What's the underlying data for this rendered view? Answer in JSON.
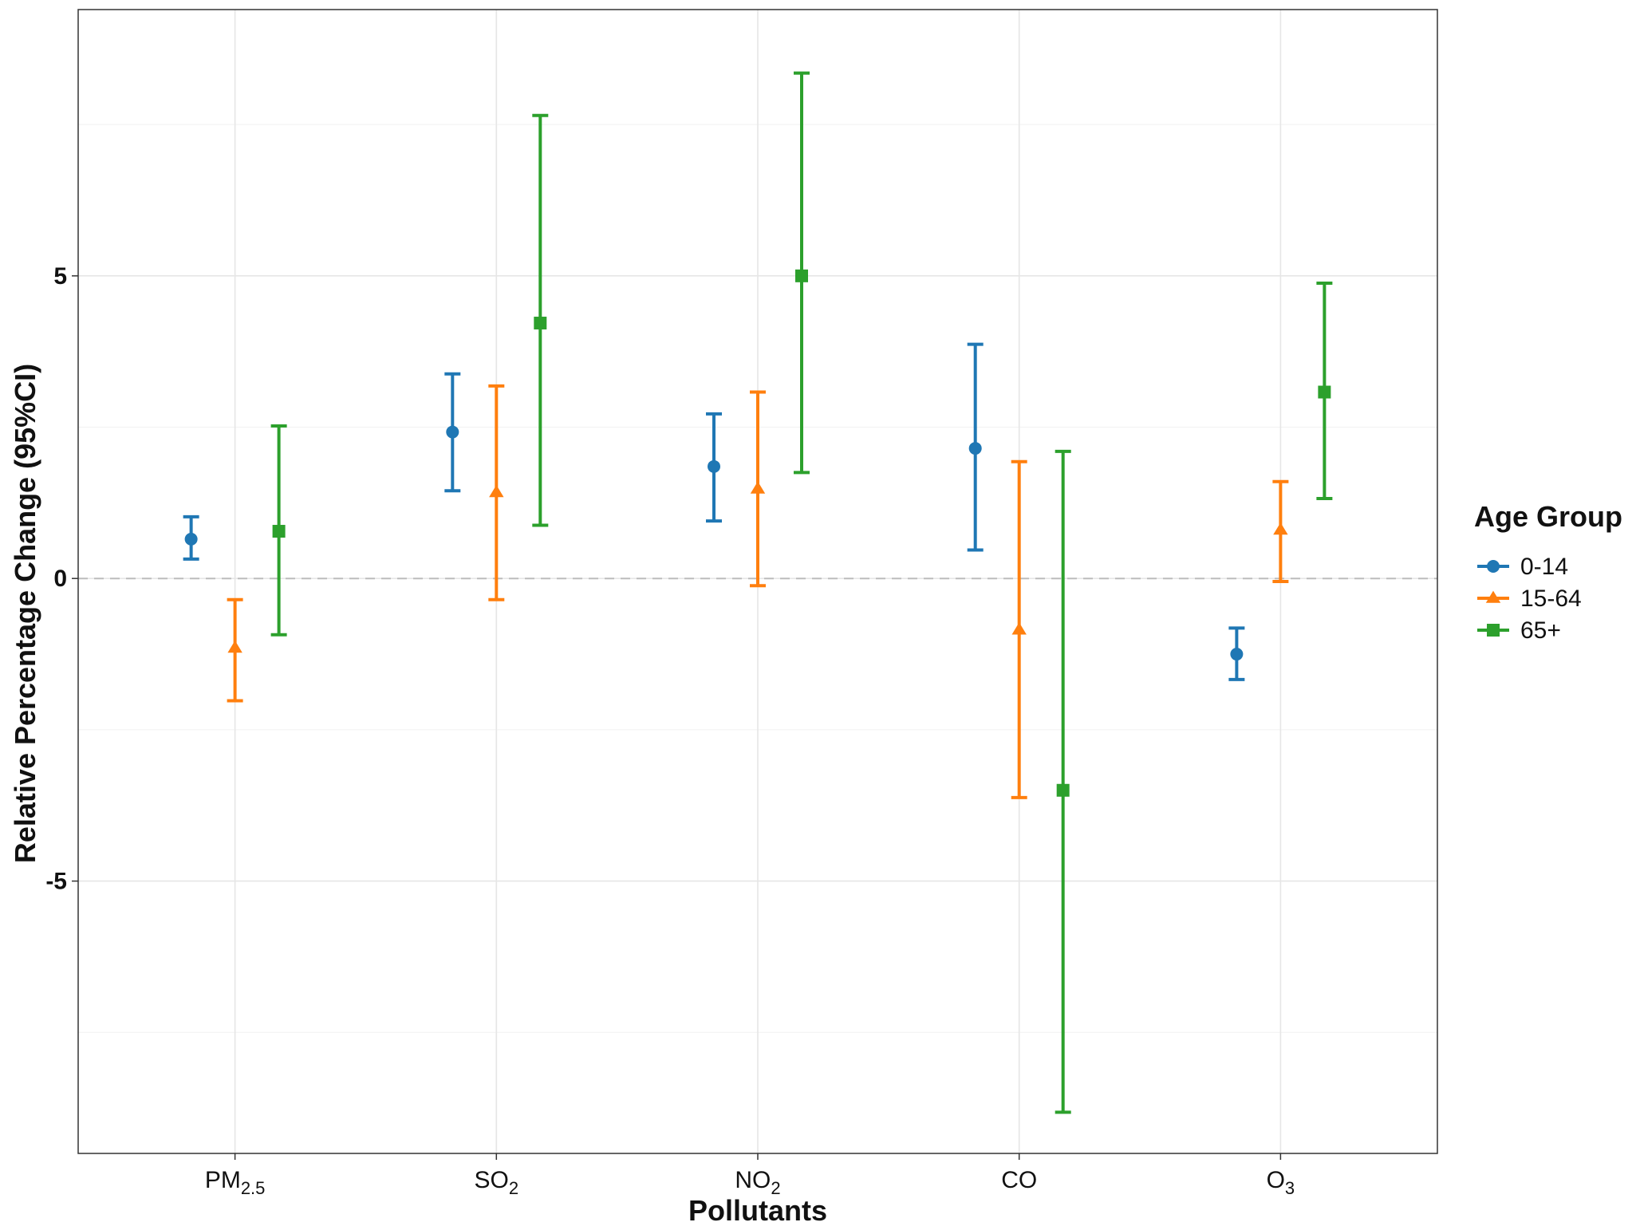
{
  "chart_data": {
    "type": "errorbar",
    "title": "",
    "xlabel": "Pollutants",
    "ylabel": "Relative Percentage Change (95%CI)",
    "categories": [
      {
        "base": "PM",
        "sub": "2.5"
      },
      {
        "base": "SO",
        "sub": "2"
      },
      {
        "base": "NO",
        "sub": "2"
      },
      {
        "base": "CO",
        "sub": ""
      },
      {
        "base": "O",
        "sub": "3"
      }
    ],
    "ylim": [
      -9.5,
      9.4
    ],
    "yticks": [
      {
        "value": -5,
        "label": "-5"
      },
      {
        "value": 0,
        "label": "0"
      },
      {
        "value": 5,
        "label": "5"
      }
    ],
    "reference_line": 0,
    "grid": true,
    "legend": {
      "title": "Age Group",
      "position": "right"
    },
    "series": [
      {
        "name": "0-14",
        "color": "#1f77b4",
        "marker": "circle",
        "estimate": [
          0.65,
          2.42,
          1.85,
          2.15,
          -1.25
        ],
        "lower": [
          0.32,
          1.45,
          0.95,
          0.47,
          -1.67
        ],
        "upper": [
          1.02,
          3.38,
          2.72,
          3.87,
          -0.82
        ]
      },
      {
        "name": "15-64",
        "color": "#ff7f0e",
        "marker": "triangle",
        "estimate": [
          -1.15,
          1.42,
          1.48,
          -0.85,
          0.8
        ],
        "lower": [
          -2.02,
          -0.35,
          -0.12,
          -3.62,
          -0.05
        ],
        "upper": [
          -0.35,
          3.18,
          3.08,
          1.93,
          1.6
        ]
      },
      {
        "name": "65+",
        "color": "#2ca02c",
        "marker": "square",
        "estimate": [
          0.78,
          4.22,
          5.0,
          -3.5,
          3.08
        ],
        "lower": [
          -0.93,
          0.88,
          1.75,
          -8.82,
          1.32
        ],
        "upper": [
          2.52,
          7.65,
          8.35,
          2.1,
          4.88
        ]
      }
    ]
  }
}
